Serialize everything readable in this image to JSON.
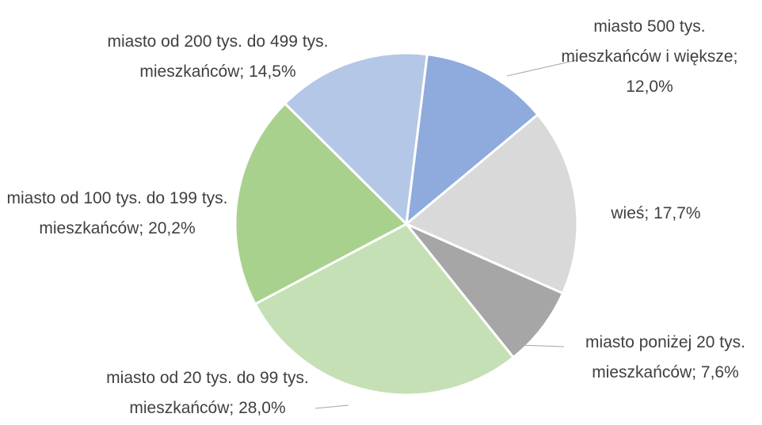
{
  "chart_data": {
    "type": "pie",
    "categories": [
      "miasto 500 tys. mieszkańców i większe",
      "wieś",
      "miasto poniżej 20 tys. mieszkańców",
      "miasto od 20 tys. do 99 tys. mieszkańców",
      "miasto od 100 tys. do 199 tys. mieszkańców",
      "miasto od 200 tys. do 499 tys. mieszkańców"
    ],
    "values": [
      12.0,
      17.7,
      7.6,
      28.0,
      20.2,
      14.5
    ],
    "value_labels": [
      "12,0%",
      "17,7%",
      "7,6%",
      "28,0%",
      "20,2%",
      "14,5%"
    ],
    "label_separator": "; ",
    "colors": [
      "#8faadc",
      "#d9d9d9",
      "#a6a6a6",
      "#c5e0b4",
      "#a9d18e",
      "#b4c7e7"
    ],
    "start_angle": 7
  }
}
